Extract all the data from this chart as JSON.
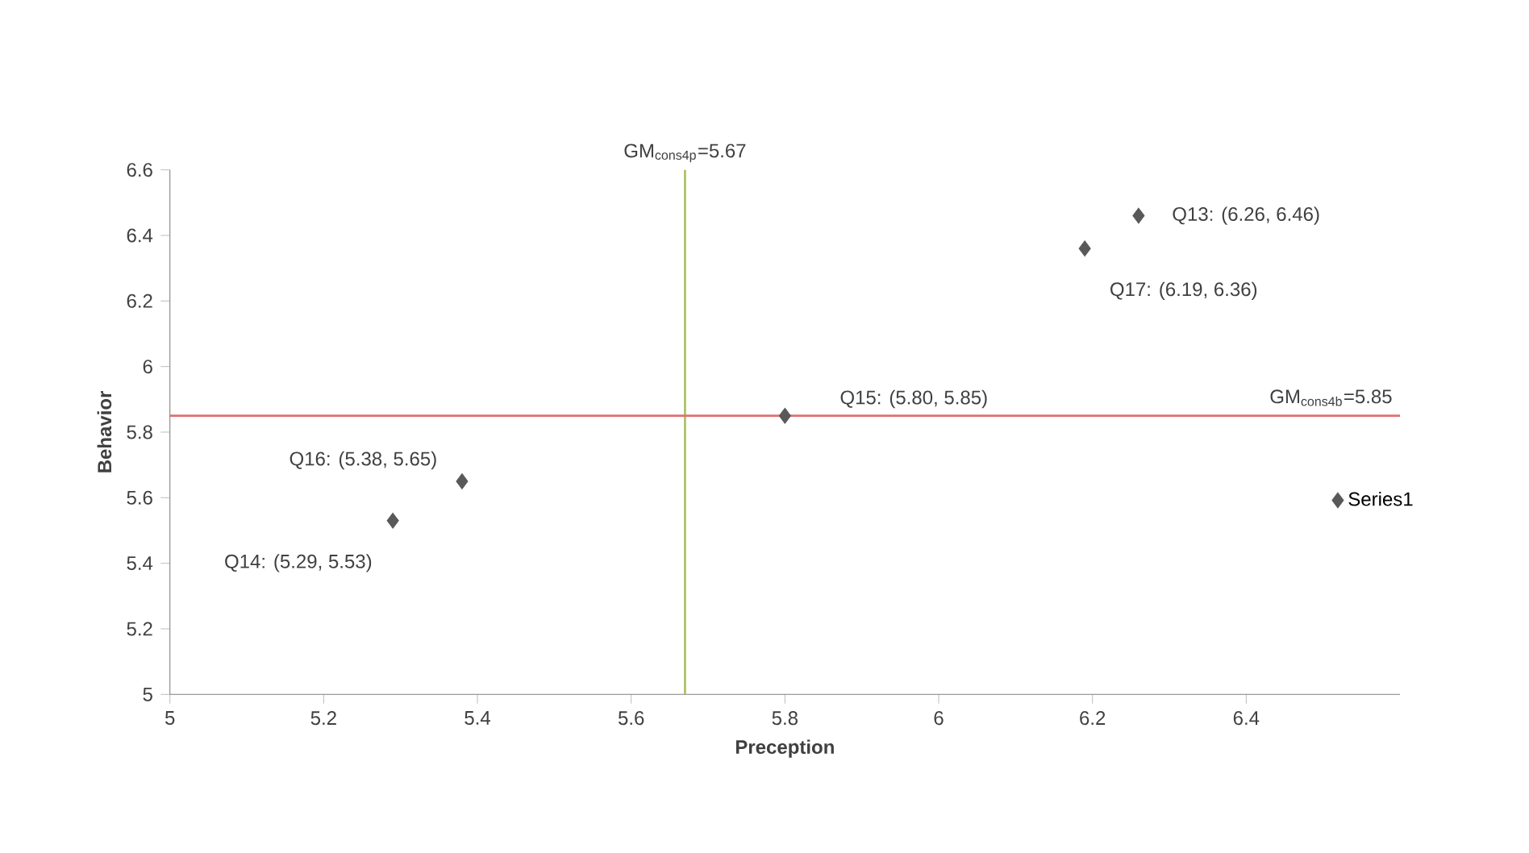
{
  "chart_data": {
    "type": "scatter",
    "xlabel": "Preception",
    "ylabel": "Behavior",
    "x": [
      5.29,
      5.38,
      5.8,
      6.19,
      6.26
    ],
    "series": [
      {
        "name": "Series1",
        "color": "#595959",
        "values": [
          5.53,
          5.65,
          5.85,
          6.36,
          6.46
        ]
      }
    ],
    "marker": "diamond",
    "legend": "right",
    "grid": false,
    "xlim": [
      5,
      6.6
    ],
    "xticks": [
      5,
      5.2,
      5.4,
      5.6,
      5.8,
      6,
      6.2,
      6.4
    ],
    "ylim": [
      5,
      6.6
    ],
    "yticks": [
      5,
      5.2,
      5.4,
      5.6,
      5.8,
      6,
      6.2,
      6.4,
      6.6
    ],
    "ref_lines": [
      {
        "axis": "x",
        "value": 5.67,
        "label": "GM$_{cons4p}$=5.67",
        "color": "#a8c060"
      },
      {
        "axis": "y",
        "value": 5.85,
        "label": "GM$_{cons4b}$=5.85",
        "color": "#e07070"
      }
    ],
    "annotations": [
      {
        "text": "Q13: (6.26, 6.46)",
        "x": 6.26,
        "y": 6.46
      },
      {
        "text": "Q17: (6.19, 6.36)",
        "x": 6.19,
        "y": 6.36
      },
      {
        "text": "Q15: (5.80, 5.85)",
        "x": 5.8,
        "y": 5.85
      },
      {
        "text": "Q16: (5.38, 5.65)",
        "x": 5.38,
        "y": 5.65
      },
      {
        "text": "Q14: (5.29, 5.53)",
        "x": 5.29,
        "y": 5.53
      }
    ]
  }
}
